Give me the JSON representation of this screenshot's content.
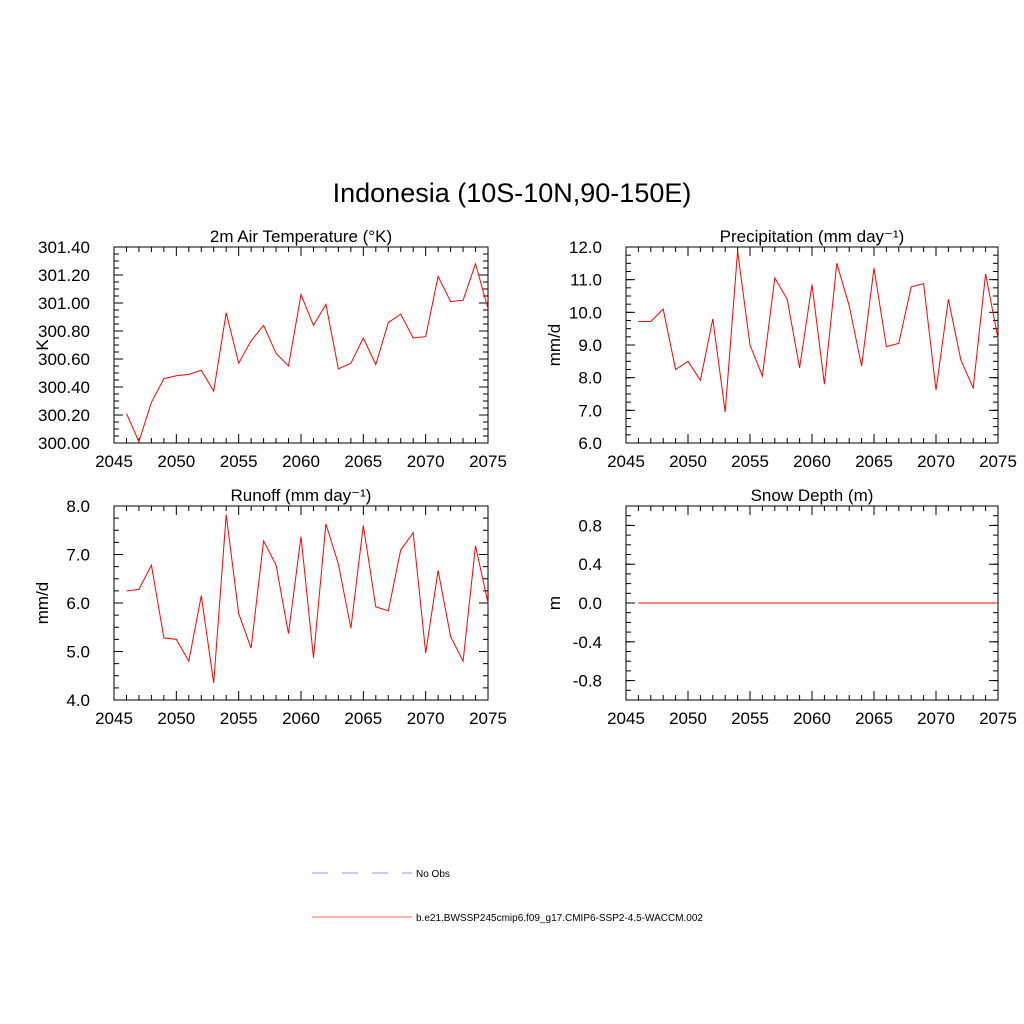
{
  "page_title": "Indonesia (10S-10N,90-150E)",
  "chart_data": [
    {
      "type": "line",
      "title": "2m Air Temperature (°K)",
      "ylabel": "K",
      "xlim": [
        2045,
        2075
      ],
      "ylim": [
        300.0,
        301.4
      ],
      "xticks": [
        "2045",
        "2050",
        "2055",
        "2060",
        "2065",
        "2070",
        "2075"
      ],
      "yticks": [
        "300.00",
        "300.20",
        "300.40",
        "300.60",
        "300.80",
        "301.00",
        "301.20",
        "301.40"
      ],
      "series": [
        {
          "color": "#ff0000",
          "x": [
            2046,
            2047,
            2048,
            2049,
            2050,
            2051,
            2052,
            2053,
            2054,
            2055,
            2056,
            2057,
            2058,
            2059,
            2060,
            2061,
            2062,
            2063,
            2064,
            2065,
            2066,
            2067,
            2068,
            2069,
            2070,
            2071,
            2072,
            2073,
            2074,
            2075
          ],
          "y": [
            300.21,
            300.01,
            300.29,
            300.46,
            300.48,
            300.49,
            300.52,
            300.37,
            300.93,
            300.57,
            300.73,
            300.84,
            300.64,
            300.55,
            301.06,
            300.84,
            300.99,
            300.53,
            300.57,
            300.75,
            300.56,
            300.86,
            300.92,
            300.75,
            300.76,
            301.19,
            301.01,
            301.02,
            301.28,
            300.96
          ]
        }
      ]
    },
    {
      "type": "line",
      "title": "Precipitation (mm day⁻¹)",
      "ylabel": "mm/d",
      "xlim": [
        2045,
        2075
      ],
      "ylim": [
        6.0,
        12.0
      ],
      "xticks": [
        "2045",
        "2050",
        "2055",
        "2060",
        "2065",
        "2070",
        "2075"
      ],
      "yticks": [
        "6.0",
        "7.0",
        "8.0",
        "9.0",
        "10.0",
        "11.0",
        "12.0"
      ],
      "series": [
        {
          "color": "#ff0000",
          "x": [
            2046,
            2047,
            2048,
            2049,
            2050,
            2051,
            2052,
            2053,
            2054,
            2055,
            2056,
            2057,
            2058,
            2059,
            2060,
            2061,
            2062,
            2063,
            2064,
            2065,
            2066,
            2067,
            2068,
            2069,
            2070,
            2071,
            2072,
            2073,
            2074,
            2075
          ],
          "y": [
            9.72,
            9.72,
            10.1,
            8.25,
            8.5,
            7.92,
            9.8,
            6.95,
            11.88,
            9.0,
            8.05,
            11.05,
            10.4,
            8.3,
            10.85,
            7.8,
            11.5,
            10.2,
            8.35,
            11.35,
            8.95,
            9.05,
            10.78,
            10.88,
            7.62,
            10.4,
            8.55,
            7.68,
            11.18,
            9.2
          ]
        }
      ]
    },
    {
      "type": "line",
      "title": "Runoff (mm day⁻¹)",
      "ylabel": "mm/d",
      "xlim": [
        2045,
        2075
      ],
      "ylim": [
        4.0,
        8.0
      ],
      "xticks": [
        "2045",
        "2050",
        "2055",
        "2060",
        "2065",
        "2070",
        "2075"
      ],
      "yticks": [
        "4.0",
        "5.0",
        "6.0",
        "7.0",
        "8.0"
      ],
      "series": [
        {
          "color": "#ff0000",
          "x": [
            2046,
            2047,
            2048,
            2049,
            2050,
            2051,
            2052,
            2053,
            2054,
            2055,
            2056,
            2057,
            2058,
            2059,
            2060,
            2061,
            2062,
            2063,
            2064,
            2065,
            2066,
            2067,
            2068,
            2069,
            2070,
            2071,
            2072,
            2073,
            2074,
            2075
          ],
          "y": [
            6.25,
            6.28,
            6.78,
            5.28,
            5.25,
            4.8,
            6.15,
            4.35,
            7.82,
            5.78,
            5.07,
            7.28,
            6.78,
            5.37,
            7.37,
            4.87,
            7.63,
            6.8,
            5.48,
            7.6,
            5.92,
            5.84,
            7.09,
            7.45,
            4.97,
            6.67,
            5.31,
            4.8,
            7.18,
            6.0
          ]
        }
      ]
    },
    {
      "type": "line",
      "title": "Snow Depth (m)",
      "ylabel": "m",
      "xlim": [
        2045,
        2075
      ],
      "ylim": [
        -1.0,
        1.0
      ],
      "xticks": [
        "2045",
        "2050",
        "2055",
        "2060",
        "2065",
        "2070",
        "2075"
      ],
      "ytick_values": [
        -0.8,
        -0.4,
        0.0,
        0.4,
        0.8
      ],
      "yticks": [
        "-0.8",
        "-0.4",
        "0.0",
        "0.4",
        "0.8"
      ],
      "series": [
        {
          "color": "#ff0000",
          "x": [
            2046,
            2075
          ],
          "y": [
            0.0,
            0.0
          ]
        }
      ]
    }
  ],
  "legend": {
    "items": [
      {
        "label": "No Obs",
        "style": "dashed",
        "color": "#9999dd"
      },
      {
        "label": "b.e21.BWSSP245cmip6.f09_g17.CMIP6-SSP2-4.5-WACCM.002",
        "style": "solid",
        "color": "#ff6666"
      }
    ]
  }
}
